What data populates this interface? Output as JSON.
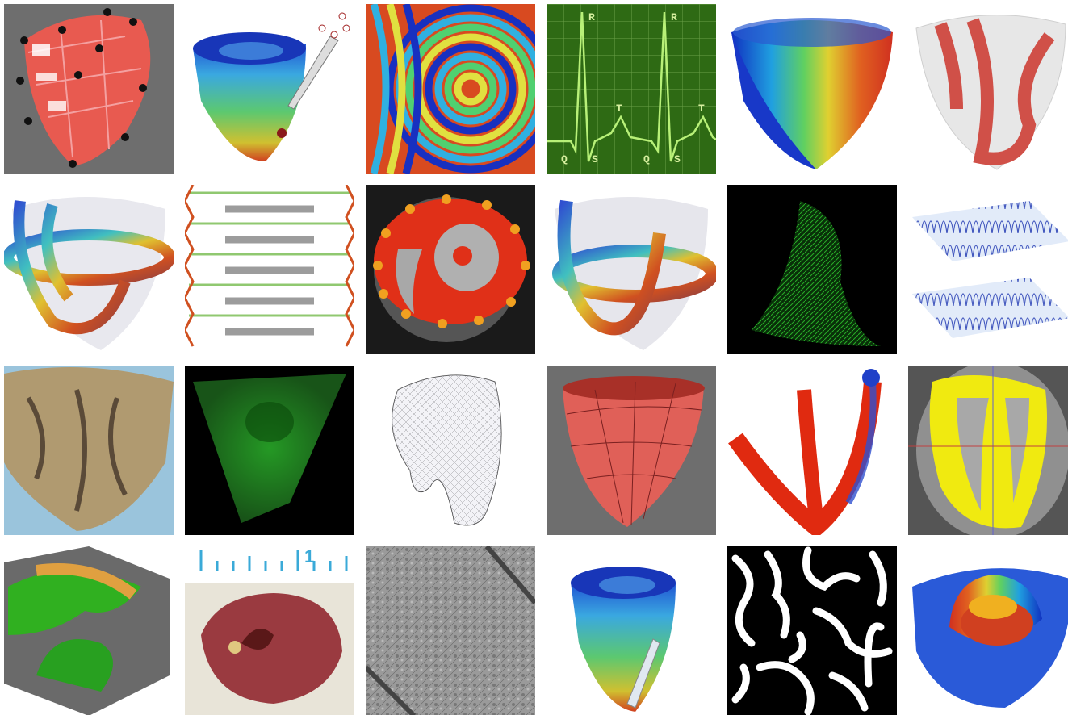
{
  "ecg": {
    "labels": [
      "R",
      "R",
      "T",
      "T",
      "Q",
      "S",
      "Q",
      "S"
    ]
  },
  "ruler": {
    "label": "1"
  }
}
